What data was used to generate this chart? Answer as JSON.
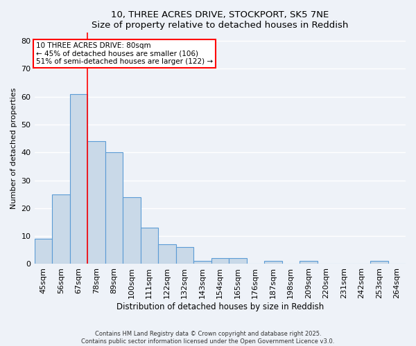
{
  "title1": "10, THREE ACRES DRIVE, STOCKPORT, SK5 7NE",
  "title2": "Size of property relative to detached houses in Reddish",
  "xlabel": "Distribution of detached houses by size in Reddish",
  "ylabel": "Number of detached properties",
  "bin_labels": [
    "45sqm",
    "56sqm",
    "67sqm",
    "78sqm",
    "89sqm",
    "100sqm",
    "111sqm",
    "122sqm",
    "132sqm",
    "143sqm",
    "154sqm",
    "165sqm",
    "176sqm",
    "187sqm",
    "198sqm",
    "209sqm",
    "220sqm",
    "231sqm",
    "242sqm",
    "253sqm",
    "264sqm"
  ],
  "values": [
    9,
    25,
    61,
    44,
    40,
    24,
    13,
    7,
    6,
    1,
    2,
    2,
    0,
    1,
    0,
    1,
    0,
    0,
    0,
    1,
    0
  ],
  "bar_color": "#c9d9e8",
  "bar_edge_color": "#5b9bd5",
  "red_line_x": 3,
  "ylim": [
    0,
    83
  ],
  "yticks": [
    0,
    10,
    20,
    30,
    40,
    50,
    60,
    70,
    80
  ],
  "annotation_text": "10 THREE ACRES DRIVE: 80sqm\n← 45% of detached houses are smaller (106)\n51% of semi-detached houses are larger (122) →",
  "bg_color": "#eef2f8",
  "grid_color": "#ffffff",
  "footer1": "Contains HM Land Registry data © Crown copyright and database right 2025.",
  "footer2": "Contains public sector information licensed under the Open Government Licence v3.0."
}
